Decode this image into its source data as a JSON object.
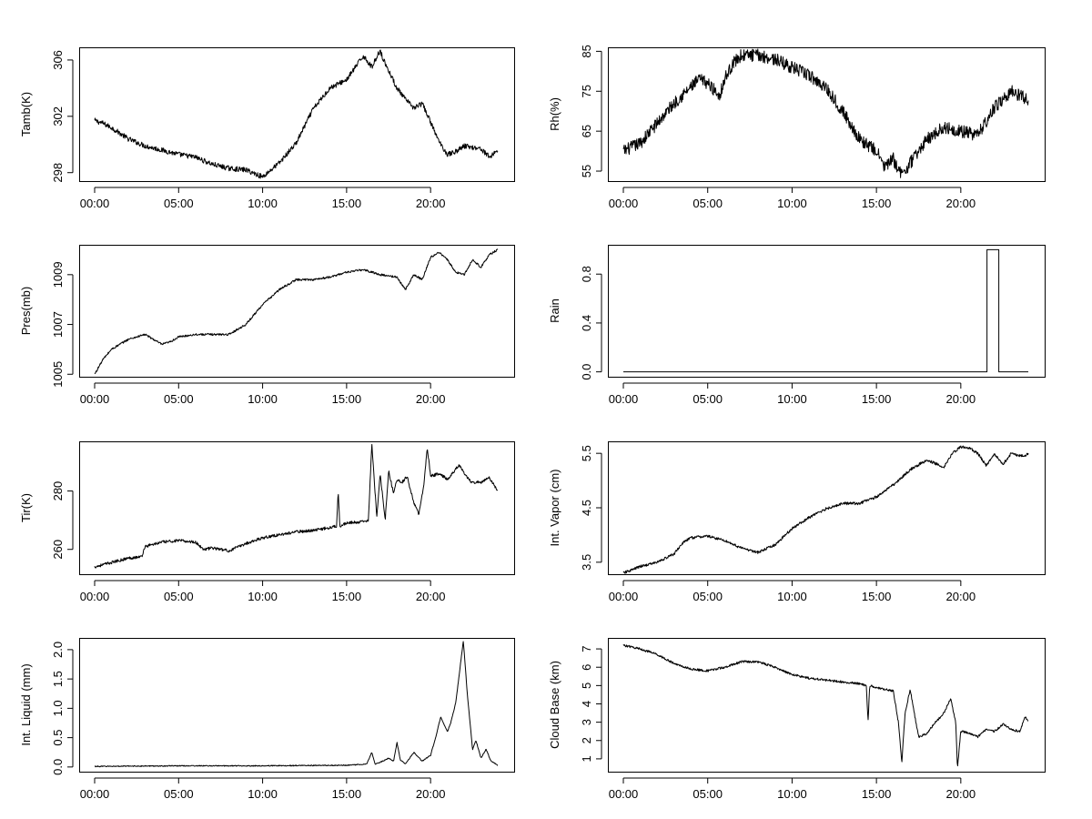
{
  "chart_data": [
    {
      "type": "line",
      "ylabel": "Tamb(K)",
      "x_ticks": [
        "00:00",
        "05:00",
        "10:00",
        "15:00",
        "20:00"
      ],
      "y_ticks": [
        298,
        302,
        306
      ],
      "xlim": [
        0,
        24
      ],
      "ylim": [
        297.4,
        306.9
      ],
      "noise": 0.18,
      "series": [
        {
          "x": [
            0,
            0.5,
            1,
            2,
            3,
            4,
            5,
            6,
            7,
            8,
            9,
            10,
            11,
            12,
            13,
            14,
            15,
            16,
            16.5,
            17,
            17.2,
            18,
            18.5,
            19,
            19.5,
            20,
            20.5,
            21,
            21.5,
            22,
            23,
            23.5,
            24
          ],
          "y": [
            301.7,
            301.5,
            301.2,
            300.4,
            299.9,
            299.6,
            299.3,
            299.1,
            298.6,
            298.3,
            298.2,
            297.7,
            298.7,
            300.1,
            302.5,
            304.0,
            304.6,
            306.3,
            305.5,
            306.7,
            306.0,
            304.0,
            303.2,
            302.6,
            302.9,
            301.6,
            300.2,
            299.3,
            299.5,
            299.9,
            299.7,
            299.1,
            299.6
          ]
        }
      ]
    },
    {
      "type": "line",
      "ylabel": "Rh(%)",
      "x_ticks": [
        "00:00",
        "05:00",
        "10:00",
        "15:00",
        "20:00"
      ],
      "y_ticks": [
        55,
        65,
        75,
        85
      ],
      "xlim": [
        0,
        24
      ],
      "ylim": [
        52.5,
        86
      ],
      "noise": 1.6,
      "series": [
        {
          "x": [
            0,
            1,
            2,
            3,
            4,
            4.5,
            5,
            5.7,
            6,
            6.5,
            7,
            8,
            9,
            10,
            11,
            12,
            13,
            14,
            15,
            15.5,
            16,
            16.5,
            17,
            18,
            19,
            20,
            21,
            22,
            23,
            24
          ],
          "y": [
            60,
            62,
            67,
            72,
            76,
            78,
            77,
            74,
            78,
            82,
            84,
            84,
            83,
            81,
            79,
            76,
            70,
            63,
            60,
            56,
            58,
            54,
            57,
            63,
            66,
            65,
            64,
            71,
            75,
            73
          ]
        }
      ]
    },
    {
      "type": "line",
      "ylabel": "Pres(mb)",
      "x_ticks": [
        "00:00",
        "05:00",
        "10:00",
        "15:00",
        "20:00"
      ],
      "y_ticks": [
        1005,
        1007,
        1009
      ],
      "xlim": [
        0,
        24
      ],
      "ylim": [
        1004.9,
        1010.2
      ],
      "noise": 0.04,
      "series": [
        {
          "x": [
            0,
            0.5,
            1,
            2,
            3,
            4,
            4.5,
            5,
            6,
            7,
            8,
            9,
            10,
            11,
            12,
            13,
            14,
            15,
            16,
            17,
            18,
            18.5,
            19,
            19.5,
            20,
            20.5,
            21,
            21.5,
            22,
            22.5,
            23,
            23.5,
            24
          ],
          "y": [
            1005.0,
            1005.6,
            1006.0,
            1006.4,
            1006.6,
            1006.2,
            1006.3,
            1006.5,
            1006.6,
            1006.6,
            1006.6,
            1007.0,
            1007.8,
            1008.4,
            1008.8,
            1008.8,
            1008.9,
            1009.1,
            1009.2,
            1009.0,
            1008.9,
            1008.4,
            1009.0,
            1008.8,
            1009.7,
            1009.9,
            1009.6,
            1009.1,
            1009.0,
            1009.6,
            1009.3,
            1009.8,
            1010.0
          ]
        }
      ]
    },
    {
      "type": "line",
      "ylabel": "Rain",
      "x_ticks": [
        "00:00",
        "05:00",
        "10:00",
        "15:00",
        "20:00"
      ],
      "y_ticks": [
        0.0,
        0.4,
        0.8
      ],
      "y_tick_labels": [
        "0.0",
        "0.4",
        "0.8"
      ],
      "xlim": [
        0,
        24
      ],
      "ylim": [
        -0.04,
        1.04
      ],
      "noise": 0,
      "series": [
        {
          "x": [
            0,
            21.55,
            21.55,
            22.25,
            22.25,
            24
          ],
          "y": [
            0,
            0,
            1,
            1,
            0,
            0
          ]
        }
      ]
    },
    {
      "type": "line",
      "ylabel": "Tir(K)",
      "x_ticks": [
        "00:00",
        "05:00",
        "10:00",
        "15:00",
        "20:00"
      ],
      "y_ticks": [
        260,
        280
      ],
      "xlim": [
        0,
        24
      ],
      "ylim": [
        251.5,
        297
      ],
      "noise": 0.5,
      "series": [
        {
          "x": [
            0,
            1,
            2,
            2.8,
            3,
            4,
            5,
            6,
            6.5,
            7,
            8,
            9,
            10,
            11,
            12,
            13,
            14,
            14.4,
            14.5,
            14.6,
            15,
            16,
            16.3,
            16.5,
            16.8,
            17,
            17.3,
            17.5,
            17.8,
            18,
            18.3,
            18.6,
            19,
            19.3,
            19.6,
            19.8,
            20,
            20.5,
            21,
            21.3,
            21.7,
            22,
            22.4,
            23,
            23.5,
            24
          ],
          "y": [
            254,
            255.5,
            257,
            257.5,
            261,
            262.5,
            263,
            262.5,
            260,
            260.5,
            259.5,
            262,
            264,
            265,
            266,
            266.5,
            267.5,
            268,
            280,
            268,
            269,
            269.5,
            270,
            296,
            271,
            286,
            270,
            287,
            279,
            284,
            283,
            285,
            276,
            272,
            282,
            295,
            285,
            286,
            284,
            286,
            289,
            286,
            283,
            283,
            284.5,
            280
          ]
        }
      ]
    },
    {
      "type": "line",
      "ylabel": "Int. Vapor (cm)",
      "x_ticks": [
        "00:00",
        "05:00",
        "10:00",
        "15:00",
        "20:00"
      ],
      "y_ticks": [
        3.5,
        4.5,
        5.5
      ],
      "y_tick_labels": [
        "3.5",
        "4.5",
        "5.5"
      ],
      "xlim": [
        0,
        24
      ],
      "ylim": [
        3.28,
        5.72
      ],
      "noise": 0.025,
      "series": [
        {
          "x": [
            0,
            1,
            2,
            3,
            3.5,
            4,
            5,
            6,
            7,
            8,
            9,
            10,
            11,
            12,
            13,
            14,
            15,
            16,
            17,
            18,
            19,
            19.5,
            20,
            20.5,
            21,
            21.5,
            22,
            22.5,
            23,
            23.5,
            24
          ],
          "y": [
            3.3,
            3.42,
            3.5,
            3.65,
            3.85,
            3.95,
            3.98,
            3.9,
            3.76,
            3.68,
            3.82,
            4.12,
            4.32,
            4.48,
            4.58,
            4.58,
            4.7,
            4.92,
            5.2,
            5.38,
            5.25,
            5.5,
            5.62,
            5.6,
            5.5,
            5.28,
            5.48,
            5.3,
            5.5,
            5.45,
            5.48
          ]
        }
      ]
    },
    {
      "type": "line",
      "ylabel": "Int. Liquid (mm)",
      "x_ticks": [
        "00:00",
        "05:00",
        "10:00",
        "15:00",
        "20:00"
      ],
      "y_ticks": [
        0.0,
        0.5,
        1.0,
        1.5,
        2.0
      ],
      "y_tick_labels": [
        "0.0",
        "0.5",
        "1.0",
        "1.5",
        "2.0"
      ],
      "xlim": [
        0,
        24
      ],
      "ylim": [
        -0.08,
        2.2
      ],
      "noise": 0.008,
      "series": [
        {
          "x": [
            0,
            5,
            10,
            15,
            16.2,
            16.5,
            16.7,
            17,
            17.5,
            17.8,
            18,
            18.2,
            18.5,
            19,
            19.5,
            20,
            20.3,
            20.6,
            21,
            21.2,
            21.5,
            21.8,
            21.95,
            22.2,
            22.5,
            22.7,
            23,
            23.3,
            23.6,
            24
          ],
          "y": [
            0.01,
            0.02,
            0.02,
            0.03,
            0.05,
            0.25,
            0.05,
            0.08,
            0.15,
            0.1,
            0.42,
            0.12,
            0.05,
            0.25,
            0.1,
            0.2,
            0.5,
            0.85,
            0.6,
            0.75,
            1.1,
            1.8,
            2.15,
            1.2,
            0.3,
            0.45,
            0.15,
            0.3,
            0.1,
            0.03
          ]
        }
      ]
    },
    {
      "type": "line",
      "ylabel": "Cloud Base (km)",
      "x_ticks": [
        "00:00",
        "05:00",
        "10:00",
        "15:00",
        "20:00"
      ],
      "y_ticks": [
        1,
        2,
        3,
        4,
        5,
        6,
        7
      ],
      "xlim": [
        0,
        24
      ],
      "ylim": [
        0.3,
        7.6
      ],
      "noise": 0.06,
      "series": [
        {
          "x": [
            0,
            1,
            2,
            3,
            4,
            5,
            6,
            7,
            8,
            9,
            10,
            11,
            12,
            13,
            14,
            14.4,
            14.5,
            14.6,
            15,
            16,
            16.3,
            16.5,
            16.7,
            17,
            17.3,
            17.5,
            18,
            18.5,
            19,
            19.4,
            19.7,
            19.8,
            20,
            20.5,
            21,
            21.5,
            22,
            22.5,
            23,
            23.5,
            23.8,
            24
          ],
          "y": [
            7.2,
            7.0,
            6.7,
            6.2,
            5.9,
            5.8,
            6.0,
            6.3,
            6.3,
            6.0,
            5.6,
            5.4,
            5.3,
            5.2,
            5.1,
            5.0,
            3.0,
            5.0,
            4.9,
            4.7,
            3.0,
            0.8,
            3.5,
            4.8,
            3.2,
            2.2,
            2.4,
            3.0,
            3.5,
            4.3,
            3.0,
            0.5,
            2.5,
            2.4,
            2.2,
            2.6,
            2.5,
            2.9,
            2.6,
            2.5,
            3.3,
            3.1
          ]
        }
      ]
    }
  ]
}
